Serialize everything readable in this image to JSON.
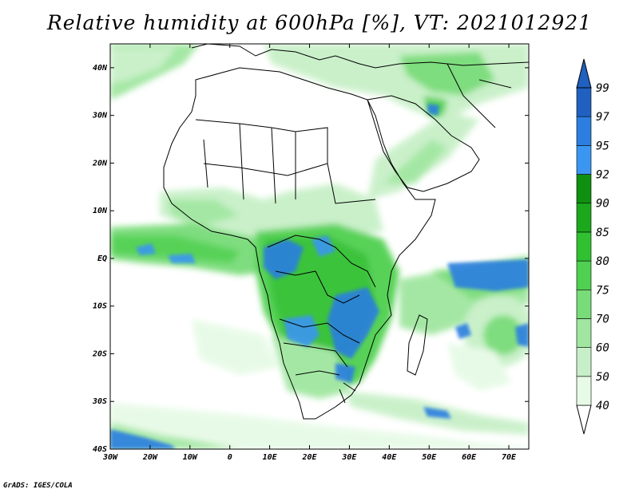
{
  "title": "Relative humidity at 600hPa [%], VT: 2021012921",
  "credit": "GrADS: IGES/COLA",
  "lat_ticks": [
    {
      "label": "40N",
      "value": 40
    },
    {
      "label": "30N",
      "value": 30
    },
    {
      "label": "20N",
      "value": 20
    },
    {
      "label": "10N",
      "value": 10
    },
    {
      "label": "EQ",
      "value": 0
    },
    {
      "label": "10S",
      "value": -10
    },
    {
      "label": "20S",
      "value": -20
    },
    {
      "label": "30S",
      "value": -30
    },
    {
      "label": "40S",
      "value": -40
    }
  ],
  "lon_ticks": [
    {
      "label": "30W",
      "value": -30
    },
    {
      "label": "20W",
      "value": -20
    },
    {
      "label": "10W",
      "value": -10
    },
    {
      "label": "0",
      "value": 0
    },
    {
      "label": "10E",
      "value": 10
    },
    {
      "label": "20E",
      "value": 20
    },
    {
      "label": "30E",
      "value": 30
    },
    {
      "label": "40E",
      "value": 40
    },
    {
      "label": "50E",
      "value": 50
    },
    {
      "label": "60E",
      "value": 60
    },
    {
      "label": "70E",
      "value": 70
    }
  ],
  "colorbar": {
    "levels": [
      "40",
      "50",
      "60",
      "70",
      "75",
      "80",
      "85",
      "90",
      "92",
      "95",
      "97",
      "99"
    ],
    "colors": [
      "#ffffff",
      "#e6fae6",
      "#c8f0c8",
      "#a0e6a0",
      "#78dc78",
      "#50d050",
      "#30c030",
      "#1ca81c",
      "#109010",
      "#3a96f0",
      "#2c7ee0",
      "#2060c0"
    ]
  }
}
